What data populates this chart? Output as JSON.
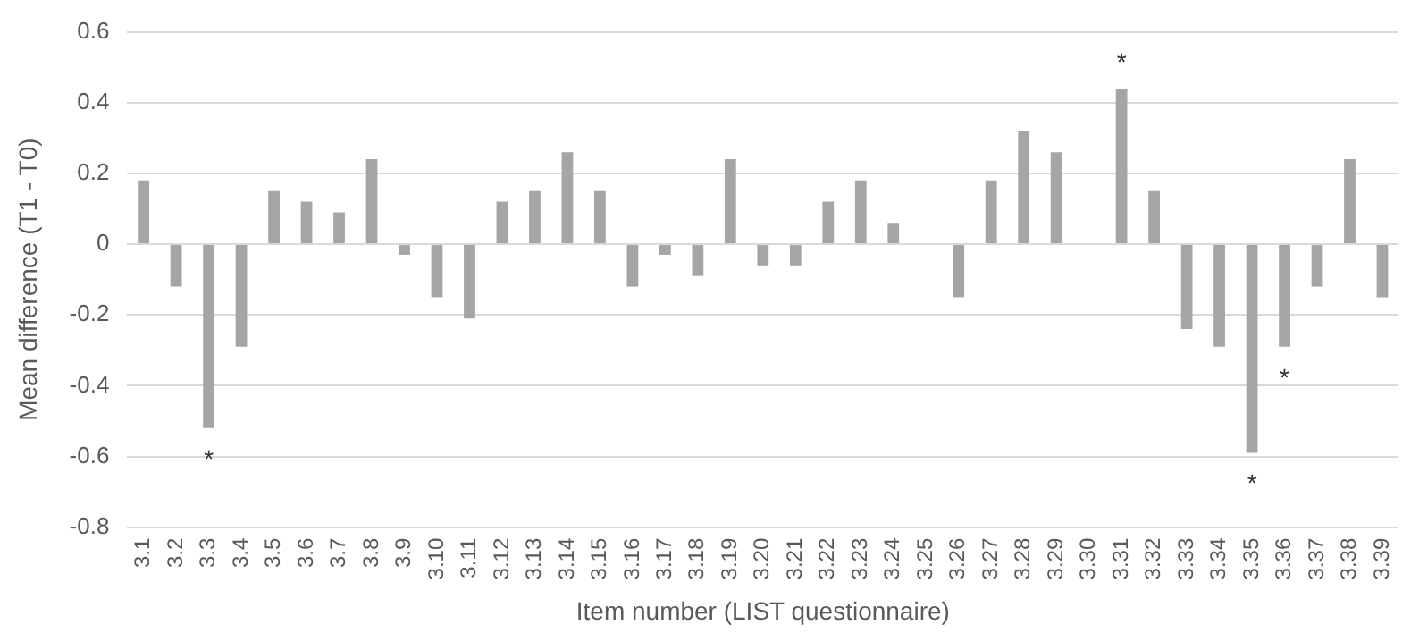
{
  "chart_data": {
    "type": "bar",
    "xlabel": "Item number (LIST questionnaire)",
    "ylabel": "Mean difference (T1 - T0)",
    "categories": [
      "3.1",
      "3.2",
      "3.3",
      "3.4",
      "3.5",
      "3.6",
      "3.7",
      "3.8",
      "3.9",
      "3.10",
      "3.11",
      "3.12",
      "3.13",
      "3.14",
      "3.15",
      "3.16",
      "3.17",
      "3.18",
      "3.19",
      "3.20",
      "3.21",
      "3.22",
      "3.23",
      "3.24",
      "3.25",
      "3.26",
      "3.27",
      "3.28",
      "3.29",
      "3.30",
      "3.31",
      "3.32",
      "3.33",
      "3.34",
      "3.35",
      "3.36",
      "3.37",
      "3.38",
      "3.39"
    ],
    "values": [
      0.18,
      -0.12,
      -0.52,
      -0.29,
      0.15,
      0.12,
      0.09,
      0.24,
      -0.03,
      -0.15,
      -0.21,
      0.12,
      0.15,
      0.26,
      0.15,
      -0.12,
      -0.03,
      -0.09,
      0.24,
      -0.06,
      -0.06,
      0.12,
      0.18,
      0.06,
      0,
      -0.15,
      0.18,
      0.32,
      0.26,
      0,
      0.44,
      0.15,
      -0.24,
      -0.29,
      -0.59,
      -0.29,
      -0.12,
      0.24,
      -0.15
    ],
    "color": "#a5a5a5",
    "ylim": [
      -0.8,
      0.6
    ],
    "yticks": [
      -0.8,
      -0.6,
      -0.4,
      -0.2,
      0,
      0.2,
      0.4,
      0.6
    ],
    "grid": "y",
    "legend": false,
    "annotations": [
      {
        "text": "*",
        "x": "3.3",
        "y": -0.52
      },
      {
        "text": "*",
        "x": "3.31",
        "y": 0.44
      },
      {
        "text": "*",
        "x": "3.35",
        "y": -0.59
      },
      {
        "text": "*",
        "x": "3.36",
        "y": -0.29
      }
    ]
  }
}
